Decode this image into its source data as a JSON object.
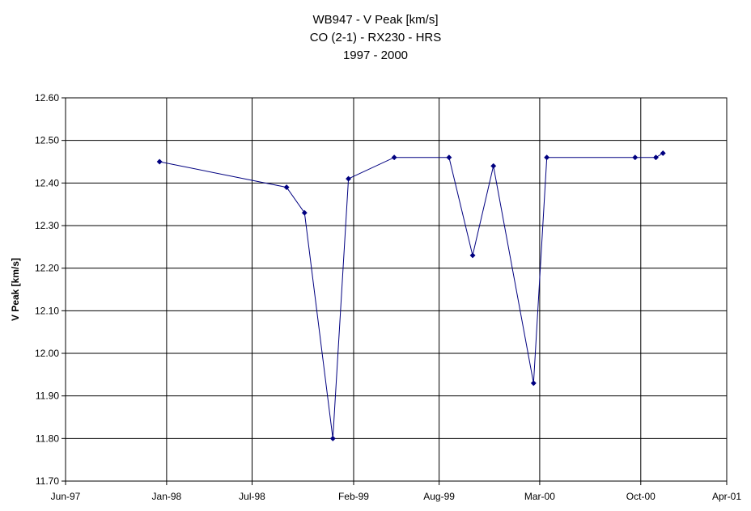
{
  "chart_data": {
    "type": "line",
    "title_lines": [
      "WB947 - V Peak [km/s]",
      "CO (2-1) - RX230 - HRS",
      "1997 - 2000"
    ],
    "xlabel": "",
    "ylabel": "V Peak [km/s]",
    "ylim": [
      11.7,
      12.6
    ],
    "xlim": [
      "1997-06-01",
      "2001-04-01"
    ],
    "y_ticks": [
      "12.60",
      "12.50",
      "12.40",
      "12.30",
      "12.20",
      "12.10",
      "12.00",
      "11.90",
      "11.80",
      "11.70"
    ],
    "x_ticks": [
      {
        "date": "1997-06-01",
        "label": "Jun-97"
      },
      {
        "date": "1998-01-01",
        "label": "Jan-98"
      },
      {
        "date": "1998-07-01",
        "label": "Jul-98"
      },
      {
        "date": "1999-02-01",
        "label": "Feb-99"
      },
      {
        "date": "1999-08-01",
        "label": "Aug-99"
      },
      {
        "date": "2000-03-01",
        "label": "Mar-00"
      },
      {
        "date": "2000-10-01",
        "label": "Oct-00"
      },
      {
        "date": "2001-04-01",
        "label": "Apr-01"
      }
    ],
    "grid": true,
    "series": [
      {
        "color": "#000080",
        "points": [
          {
            "x": "1997-12-17",
            "y": 12.45
          },
          {
            "x": "1998-09-12",
            "y": 12.39
          },
          {
            "x": "1998-10-20",
            "y": 12.33
          },
          {
            "x": "1998-12-19",
            "y": 11.8
          },
          {
            "x": "1999-01-21",
            "y": 12.41
          },
          {
            "x": "1999-04-28",
            "y": 12.46
          },
          {
            "x": "1999-08-22",
            "y": 12.46
          },
          {
            "x": "1999-10-11",
            "y": 12.23
          },
          {
            "x": "1999-11-24",
            "y": 12.44
          },
          {
            "x": "2000-02-17",
            "y": 11.93
          },
          {
            "x": "2000-03-16",
            "y": 12.46
          },
          {
            "x": "2000-09-19",
            "y": 12.46
          },
          {
            "x": "2000-11-02",
            "y": 12.46
          },
          {
            "x": "2000-11-17",
            "y": 12.47
          }
        ]
      }
    ]
  }
}
